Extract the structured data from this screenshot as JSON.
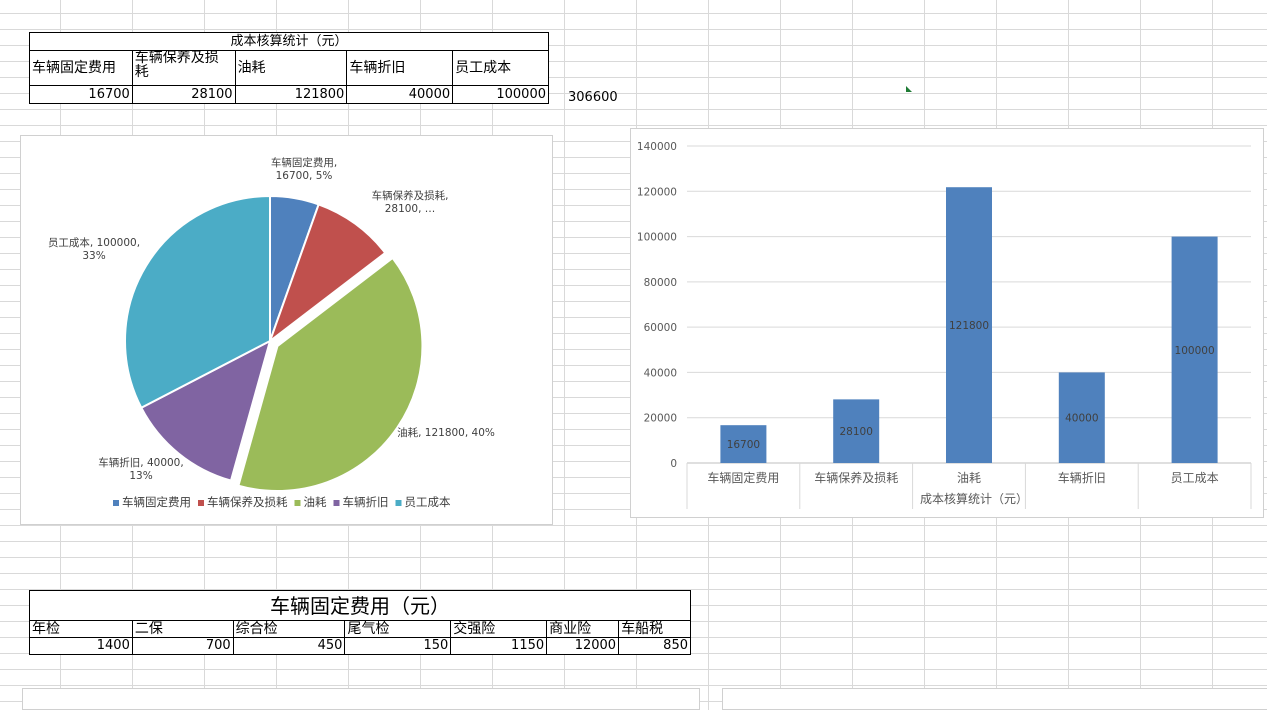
{
  "cost_table": {
    "title": "成本核算统计（元）",
    "headers": [
      "车辆固定费用",
      "车辆保养及损耗",
      "油耗",
      "车辆折旧",
      "员工成本"
    ],
    "values": [
      "16700",
      "28100",
      "121800",
      "40000",
      "100000"
    ],
    "total": "306600"
  },
  "pie_chart": {
    "chart_data": {
      "type": "pie",
      "slices": [
        {
          "name": "车辆固定费用",
          "value": 16700,
          "percent": 5,
          "color": "#4f81bd",
          "label_lines": [
            "车辆固定费用,",
            "16700, 5%"
          ]
        },
        {
          "name": "车辆保养及损耗",
          "value": 28100,
          "percent": 9,
          "color": "#c0504d",
          "label_lines": [
            "车辆保养及损耗,",
            "28100, …"
          ]
        },
        {
          "name": "油耗",
          "value": 121800,
          "percent": 40,
          "color": "#9bbb59",
          "label_lines": [
            "油耗, 121800, 40%"
          ]
        },
        {
          "name": "车辆折旧",
          "value": 40000,
          "percent": 13,
          "color": "#8064a2",
          "label_lines": [
            "车辆折旧, 40000,",
            "13%"
          ]
        },
        {
          "name": "员工成本",
          "value": 100000,
          "percent": 33,
          "color": "#4bacc6",
          "label_lines": [
            "员工成本, 100000,",
            "33%"
          ]
        }
      ],
      "legend": [
        "车辆固定费用",
        "车辆保养及损耗",
        "油耗",
        "车辆折旧",
        "员工成本"
      ],
      "legend_position": "bottom"
    }
  },
  "bar_chart": {
    "chart_data": {
      "type": "bar",
      "categories": [
        "车辆固定费用",
        "车辆保养及损耗",
        "油耗",
        "车辆折旧",
        "员工成本"
      ],
      "values": [
        16700,
        28100,
        121800,
        40000,
        100000
      ],
      "data_labels": [
        "16700",
        "28100",
        "121800",
        "40000",
        "100000"
      ],
      "xlabel": "成本核算统计（元）",
      "ylim": [
        0,
        140000
      ],
      "yticks": [
        "0",
        "20000",
        "40000",
        "60000",
        "80000",
        "100000",
        "120000",
        "140000"
      ],
      "color": "#4f81bd",
      "grid": true
    }
  },
  "fixed_table": {
    "title": "车辆固定费用（元）",
    "headers": [
      "年检",
      "二保",
      "综合检",
      "尾气检",
      "交强险",
      "商业险",
      "车船税"
    ],
    "values": [
      "1400",
      "700",
      "450",
      "150",
      "1150",
      "12000",
      "850"
    ]
  }
}
